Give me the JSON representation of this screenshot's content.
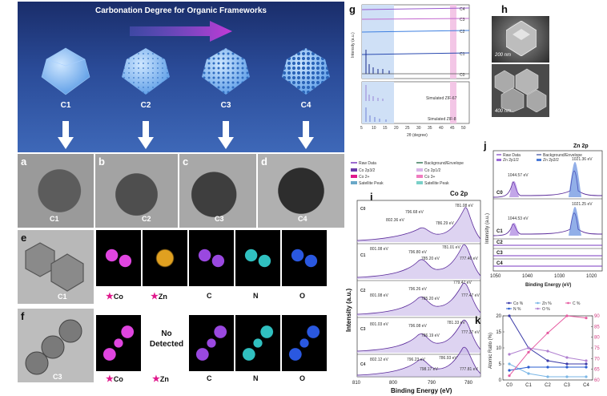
{
  "schematic": {
    "title": "Carbonation Degree for Organic Frameworks",
    "samples": [
      "C1",
      "C2",
      "C3",
      "C4"
    ]
  },
  "panels": {
    "a": "a",
    "b": "b",
    "c": "c",
    "d": "d",
    "e": "e",
    "f": "f",
    "g": "g",
    "h": "h",
    "i": "i",
    "j": "j",
    "k": "k"
  },
  "tem_labels": [
    "C1",
    "C2",
    "C3",
    "C4"
  ],
  "mapping_e": {
    "image_label": "C1",
    "elements": [
      "Co",
      "Zn",
      "C",
      "N",
      "O"
    ]
  },
  "mapping_f": {
    "image_label": "C3",
    "elements": [
      "Co",
      "Zn",
      "C",
      "N",
      "O"
    ],
    "no_detected": "No Detected"
  },
  "panel_g": {
    "ylabel": "Intensity (a.u.)",
    "xlabel": "2θ (degree)",
    "series": [
      "C4",
      "C3",
      "C2",
      "C1",
      "C0"
    ],
    "references": [
      "Simulated ZIF-67",
      "Simulated ZIF-8"
    ],
    "xticks": [
      "5",
      "10",
      "15",
      "20",
      "25",
      "30",
      "35",
      "40",
      "45",
      "50"
    ]
  },
  "panel_h": {
    "scale_top": "200 nm",
    "scale_bottom": "400 nm"
  },
  "panel_i": {
    "title": "Co 2p",
    "legend": [
      "Raw Data",
      "Background/Envelope",
      "Co 2p3/2",
      "Co 2p1/2",
      "Co 2+",
      "Co 3+",
      "Satellite Peak",
      "Satellite Peak"
    ],
    "ylabel": "Intensity (a.u.)",
    "xlabel": "Binding Energy (eV)",
    "xticks": [
      "810",
      "800",
      "790",
      "780"
    ],
    "spectra": [
      {
        "name": "C0",
        "peaks": [
          "796.68 eV",
          "781.08 eV",
          "802.36 eV",
          "786.29 eV"
        ]
      },
      {
        "name": "C1",
        "peaks": [
          "801.08 eV",
          "796.80 eV",
          "781.01 eV",
          "785.20 eV",
          "777.46 eV"
        ]
      },
      {
        "name": "C2",
        "peaks": [
          "801.08 eV",
          "796.26 eV",
          "779.47 eV",
          "785.20 eV",
          "777.47 eV"
        ]
      },
      {
        "name": "C3",
        "peaks": [
          "801.03 eV",
          "796.08 eV",
          "781.33 eV",
          "786.19 eV",
          "777.37 eV"
        ]
      },
      {
        "name": "C4",
        "peaks": [
          "802.12 eV",
          "796.23 eV",
          "786.93 eV",
          "798.17 eV",
          "777.81 eV"
        ]
      }
    ]
  },
  "panel_j": {
    "title": "Zn 2p",
    "legend": [
      "Raw Data",
      "Background/Envelope",
      "Zn 2p1/2",
      "Zn 2p3/2"
    ],
    "peak_c0_left": "1044.57 eV",
    "peak_c0_right": "1021.36 eV",
    "peak_c1_left": "1044.53 eV",
    "peak_c1_right": "1021.25 eV",
    "spectra": [
      "C0",
      "C1",
      "C2",
      "C3",
      "C4"
    ],
    "ylabel": "Intensity (a.u.)",
    "xlabel": "Binding Energy (eV)",
    "xticks": [
      "1050",
      "1040",
      "1030",
      "1020"
    ]
  },
  "chart_data": {
    "type": "line",
    "ylabel": "Atomic Ratio (%)",
    "categories": [
      "C0",
      "C1",
      "C2",
      "C3",
      "C4"
    ],
    "series": [
      {
        "name": "Co %",
        "axis": "left",
        "values": [
          20,
          10,
          6,
          5,
          5
        ]
      },
      {
        "name": "Zn %",
        "axis": "left",
        "values": [
          5,
          2,
          1,
          1,
          1
        ]
      },
      {
        "name": "N %",
        "axis": "left",
        "values": [
          3,
          4,
          4,
          4,
          4
        ]
      },
      {
        "name": "O %",
        "axis": "left",
        "values": [
          8,
          10,
          9,
          7,
          6
        ]
      },
      {
        "name": "C %",
        "axis": "right",
        "values": [
          62,
          73,
          82,
          90,
          89
        ]
      }
    ],
    "ylim_left": [
      0,
      20
    ],
    "ylim_right": [
      60,
      90
    ],
    "yticks_left": [
      "0",
      "5",
      "10",
      "15",
      "20"
    ],
    "yticks_right": [
      "60",
      "65",
      "70",
      "75",
      "80",
      "85",
      "90"
    ],
    "colors": {
      "Co %": "#3a3aa8",
      "Zn %": "#7ab6e6",
      "N %": "#2a5ccf",
      "O %": "#b080d0",
      "C %": "#e65aa0"
    }
  }
}
